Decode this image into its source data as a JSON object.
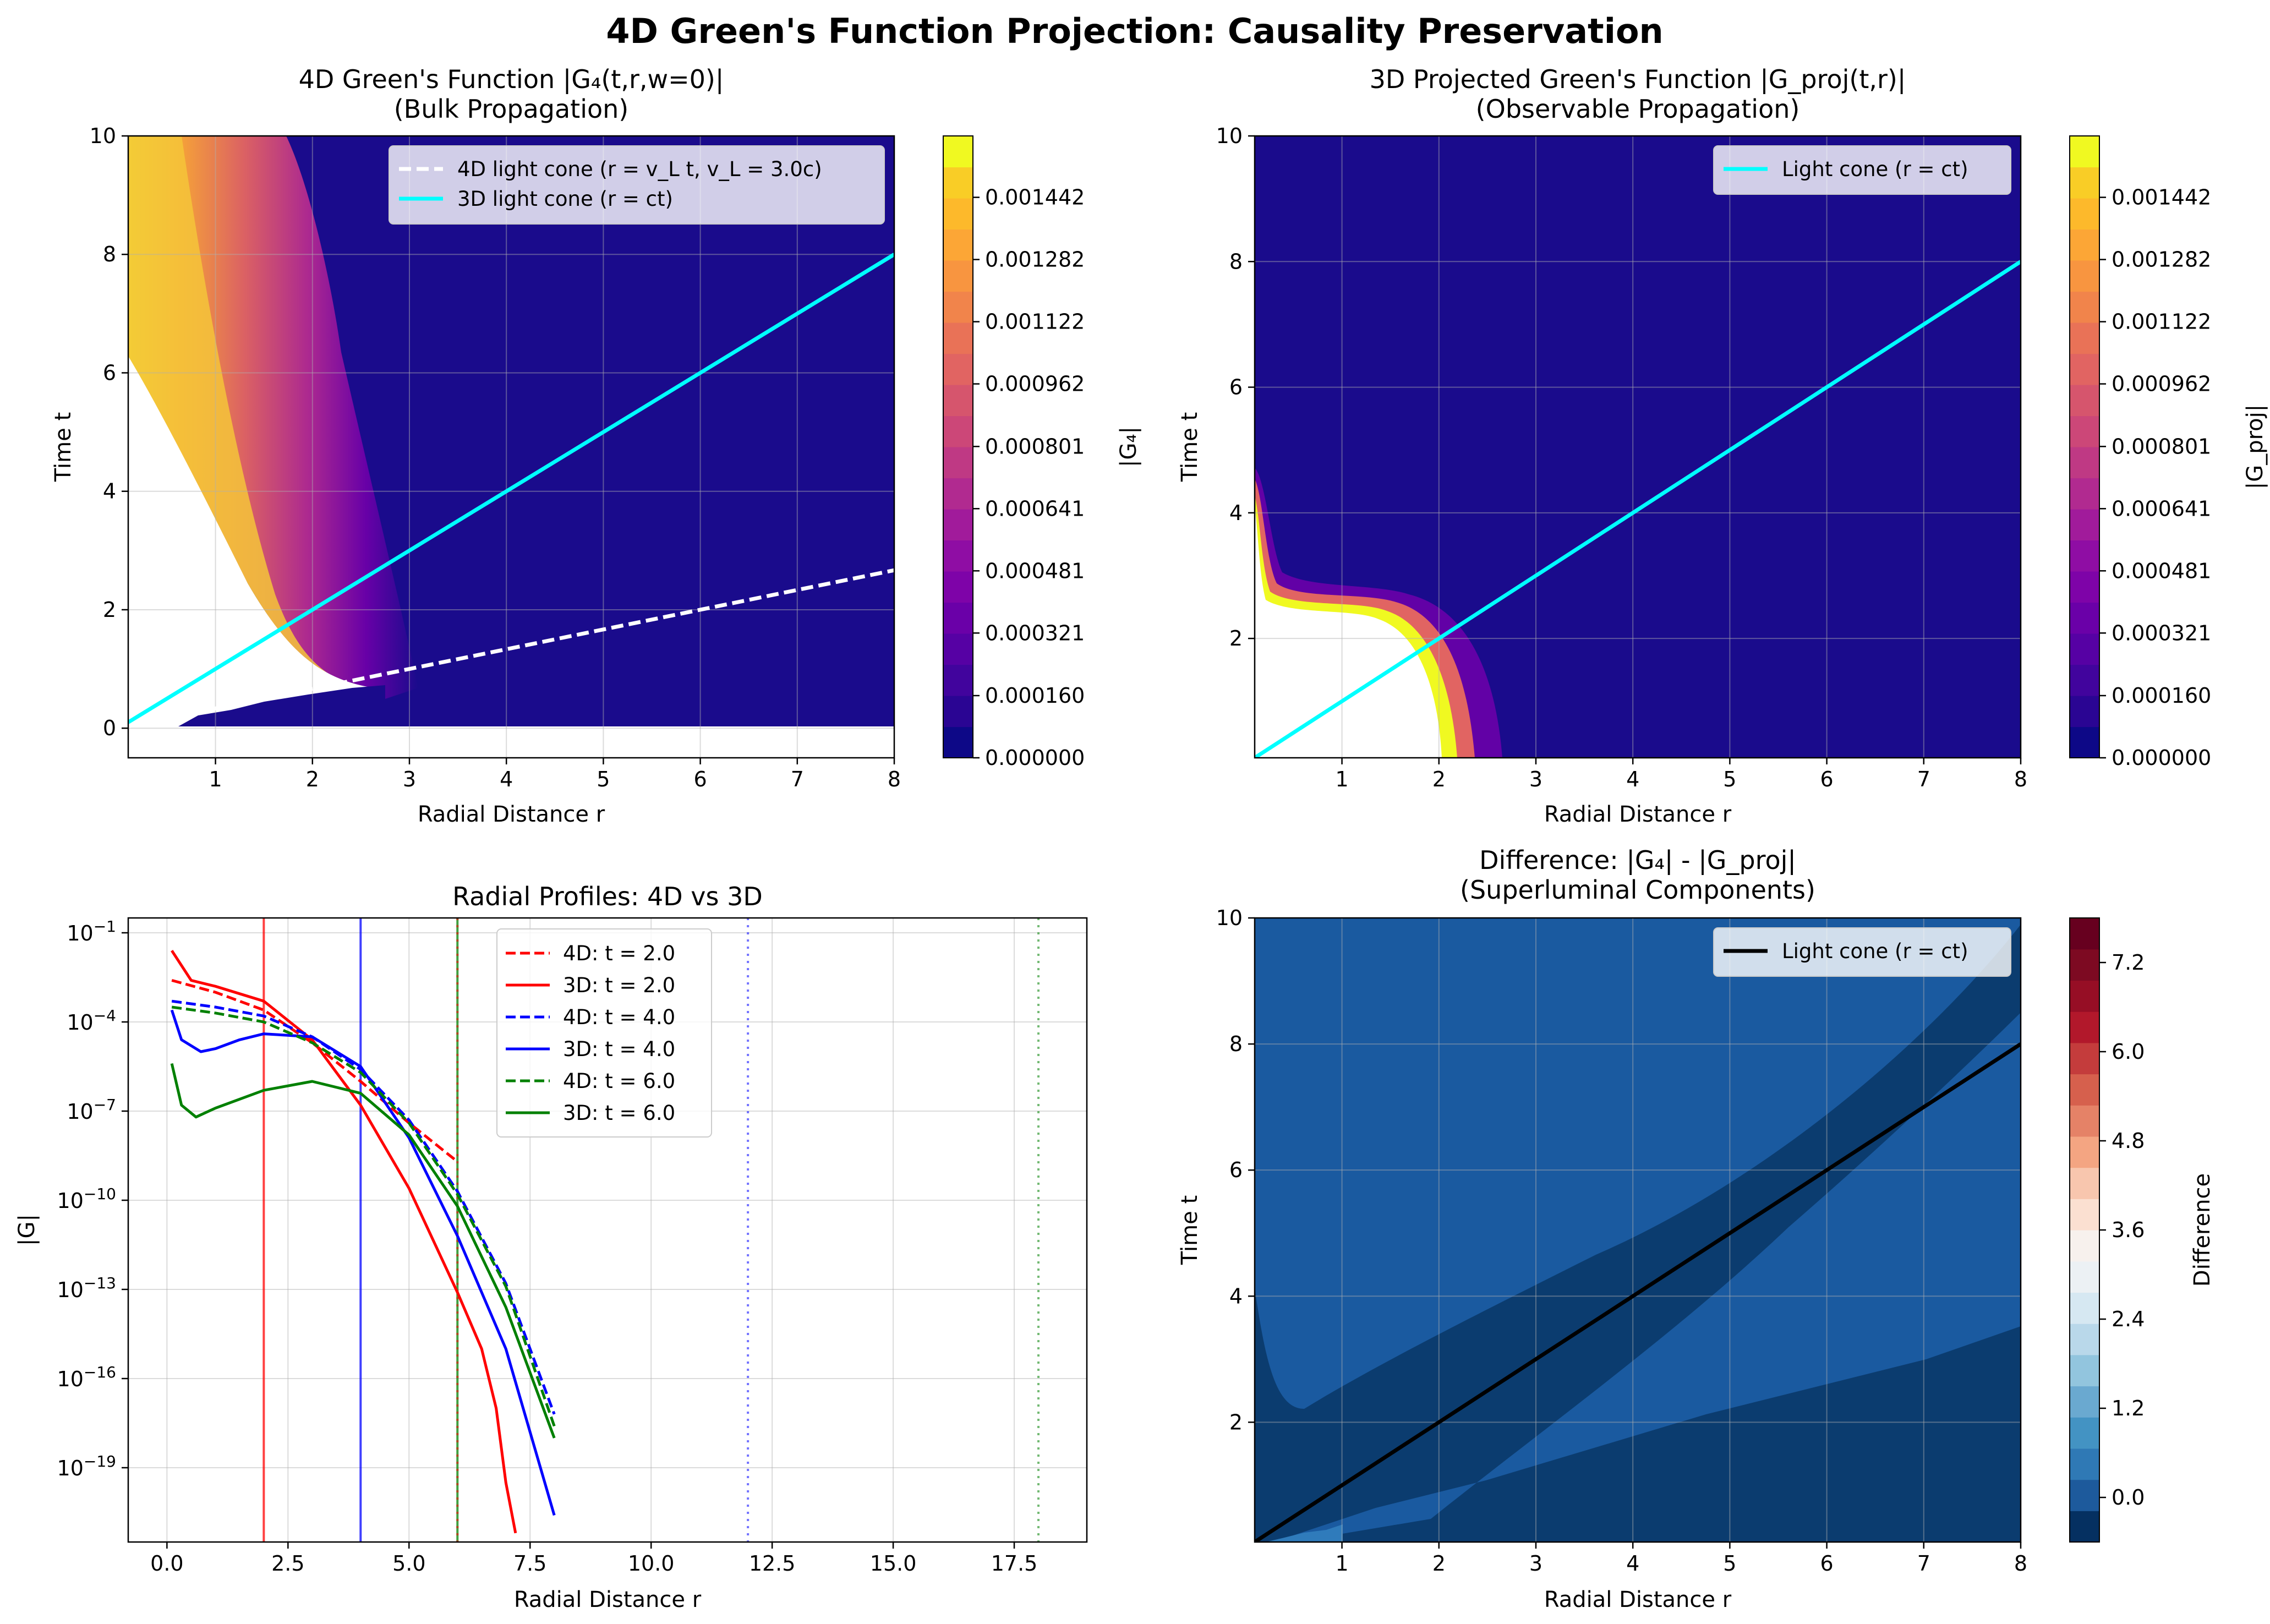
{
  "figure": {
    "title": "4D Green's Function Projection: Causality Preservation"
  },
  "chart_data": [
    {
      "type": "heatmap",
      "title": "4D Green's Function |G₄(t,r,w=0)|",
      "subtitle": "(Bulk Propagation)",
      "xlabel": "Radial Distance r",
      "ylabel": "Time t",
      "xlim": [
        0.1,
        8
      ],
      "ylim": [
        -0.5,
        10
      ],
      "xticks": [
        "1",
        "2",
        "3",
        "4",
        "5",
        "6",
        "7",
        "8"
      ],
      "yticks": [
        "0",
        "2",
        "4",
        "6",
        "8",
        "10"
      ],
      "grid": true,
      "colormap": "plasma",
      "colorbar_label": "|G₄|",
      "colorbar_ticks": [
        "0.000000",
        "0.000160",
        "0.000321",
        "0.000481",
        "0.000641",
        "0.000801",
        "0.000962",
        "0.001122",
        "0.001282",
        "0.001442"
      ],
      "colorbar_range": [
        0,
        0.0016
      ],
      "legend_position": "top-right",
      "series": [
        {
          "name": "4D light cone (r = v_L t, v_L = 3.0c)",
          "style": "dashed",
          "color": "#ffffff",
          "x": [
            0.1,
            8
          ],
          "y": [
            0.033,
            2.667
          ]
        },
        {
          "name": "3D light cone (r = ct)",
          "style": "solid",
          "color": "#00ffff",
          "x": [
            0.1,
            8
          ],
          "y": [
            0.1,
            8
          ]
        }
      ]
    },
    {
      "type": "heatmap",
      "title": "3D Projected Green's Function |G_proj(t,r)|",
      "subtitle": "(Observable Propagation)",
      "xlabel": "Radial Distance r",
      "ylabel": "Time t",
      "xlim": [
        0.1,
        8
      ],
      "ylim": [
        0.1,
        10
      ],
      "xticks": [
        "1",
        "2",
        "3",
        "4",
        "5",
        "6",
        "7",
        "8"
      ],
      "yticks": [
        "2",
        "4",
        "6",
        "8",
        "10"
      ],
      "grid": true,
      "colormap": "plasma",
      "colorbar_label": "|G_proj|",
      "colorbar_ticks": [
        "0.000000",
        "0.000160",
        "0.000321",
        "0.000481",
        "0.000641",
        "0.000801",
        "0.000962",
        "0.001122",
        "0.001282",
        "0.001442"
      ],
      "colorbar_range": [
        0,
        0.0016
      ],
      "legend_position": "top-right",
      "series": [
        {
          "name": "Light cone (r = ct)",
          "style": "solid",
          "color": "#00ffff",
          "x": [
            0.1,
            8
          ],
          "y": [
            0.1,
            8
          ]
        }
      ]
    },
    {
      "type": "line",
      "title": "Radial Profiles: 4D vs 3D",
      "xlabel": "Radial Distance r",
      "ylabel": "|G|",
      "xlim": [
        -0.8,
        19
      ],
      "ylim_log10": [
        -21.5,
        -0.5
      ],
      "yscale": "log",
      "xticks": [
        "0.0",
        "2.5",
        "5.0",
        "7.5",
        "10.0",
        "12.5",
        "15.0",
        "17.5"
      ],
      "ytick_exponents": [
        "-1",
        "-4",
        "-7",
        "-10",
        "-13",
        "-16",
        "-19"
      ],
      "grid": true,
      "legend_position": "top-center",
      "series": [
        {
          "name": "4D: t = 2.0",
          "style": "dashed",
          "color": "#ff0000",
          "x": [
            0.1,
            1,
            2,
            3,
            4,
            5,
            6
          ],
          "log10_y": [
            -2.6,
            -3.0,
            -3.6,
            -4.7,
            -6.0,
            -7.4,
            -8.7
          ]
        },
        {
          "name": "3D: t = 2.0",
          "style": "solid",
          "color": "#ff0000",
          "x": [
            0.1,
            0.3,
            0.5,
            1,
            2,
            3,
            4,
            5,
            6,
            6.5,
            6.8,
            7.0,
            7.2
          ],
          "log10_y": [
            -1.6,
            -2.1,
            -2.6,
            -2.8,
            -3.3,
            -4.6,
            -6.8,
            -9.6,
            -13.1,
            -15.0,
            -17.0,
            -19.5,
            -21.2
          ]
        },
        {
          "name": "4D: t = 4.0",
          "style": "dashed",
          "color": "#0000ff",
          "x": [
            0.1,
            1,
            2,
            3,
            4,
            5,
            6,
            7,
            8
          ],
          "log10_y": [
            -3.3,
            -3.5,
            -3.8,
            -4.5,
            -5.6,
            -7.3,
            -9.7,
            -12.8,
            -17.2
          ]
        },
        {
          "name": "3D: t = 4.0",
          "style": "solid",
          "color": "#0000ff",
          "x": [
            0.1,
            0.3,
            0.7,
            1,
            1.5,
            2,
            3,
            4,
            5,
            6,
            7,
            8
          ],
          "log10_y": [
            -3.6,
            -4.6,
            -5.0,
            -4.9,
            -4.6,
            -4.4,
            -4.5,
            -5.5,
            -7.9,
            -11.2,
            -15.0,
            -20.6
          ]
        },
        {
          "name": "4D: t = 6.0",
          "style": "dashed",
          "color": "#008000",
          "x": [
            0.1,
            1,
            2,
            3,
            4,
            5,
            6,
            7,
            8
          ],
          "log10_y": [
            -3.5,
            -3.7,
            -4.0,
            -4.7,
            -5.7,
            -7.4,
            -9.8,
            -12.9,
            -17.6
          ]
        },
        {
          "name": "3D: t = 6.0",
          "style": "solid",
          "color": "#008000",
          "x": [
            0.1,
            0.3,
            0.6,
            1,
            2,
            3,
            4,
            5,
            6,
            7,
            8
          ],
          "log10_y": [
            -5.4,
            -6.8,
            -7.2,
            -6.9,
            -6.3,
            -6.0,
            -6.4,
            -7.8,
            -10.2,
            -13.6,
            -18.0
          ]
        }
      ],
      "vertical_lines": [
        {
          "x": 2,
          "style": "solid",
          "color": "#ff0000"
        },
        {
          "x": 4,
          "style": "solid",
          "color": "#0000ff"
        },
        {
          "x": 6,
          "style": "solid",
          "color": "#008000"
        },
        {
          "x": 6,
          "style": "dotted",
          "color": "#ff0000"
        },
        {
          "x": 12,
          "style": "dotted",
          "color": "#0000ff"
        },
        {
          "x": 18,
          "style": "dotted",
          "color": "#008000"
        }
      ]
    },
    {
      "type": "heatmap",
      "title": "Difference: |G₄| - |G_proj|",
      "subtitle": "(Superluminal Components)",
      "xlabel": "Radial Distance r",
      "ylabel": "Time t",
      "xlim": [
        0.1,
        8
      ],
      "ylim": [
        0.1,
        10
      ],
      "xticks": [
        "1",
        "2",
        "3",
        "4",
        "5",
        "6",
        "7",
        "8"
      ],
      "yticks": [
        "2",
        "4",
        "6",
        "8",
        "10"
      ],
      "grid": true,
      "colormap": "RdBu_r",
      "colorbar_label": "Difference",
      "colorbar_ticks": [
        "0.0",
        "1.2",
        "2.4",
        "3.6",
        "4.8",
        "6.0",
        "7.2"
      ],
      "colorbar_range": [
        -0.6,
        7.8
      ],
      "legend_position": "top-right",
      "series": [
        {
          "name": "Light cone (r = ct)",
          "style": "solid",
          "color": "#000000",
          "x": [
            0.1,
            8
          ],
          "y": [
            0.1,
            8
          ]
        }
      ]
    }
  ]
}
